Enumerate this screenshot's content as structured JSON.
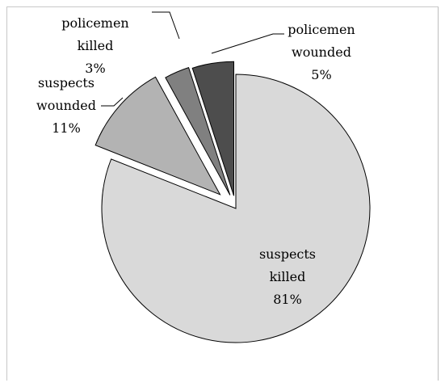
{
  "chart_data": {
    "type": "pie",
    "title": "",
    "categories": [
      "suspects killed",
      "suspects wounded",
      "policemen killed",
      "policemen wounded"
    ],
    "values": [
      81,
      11,
      3,
      5
    ],
    "labels": [
      {
        "lines": [
          "suspects",
          "killed"
        ],
        "pct": "81%"
      },
      {
        "lines": [
          "suspects",
          "wounded"
        ],
        "pct": "11%"
      },
      {
        "lines": [
          "policemen",
          "killed"
        ],
        "pct": "3%"
      },
      {
        "lines": [
          "policemen",
          "wounded"
        ],
        "pct": "5%"
      }
    ],
    "colors": [
      "#d9d9d9",
      "#b3b3b3",
      "#808080",
      "#4d4d4d"
    ],
    "exploded": true,
    "legend": "none"
  }
}
